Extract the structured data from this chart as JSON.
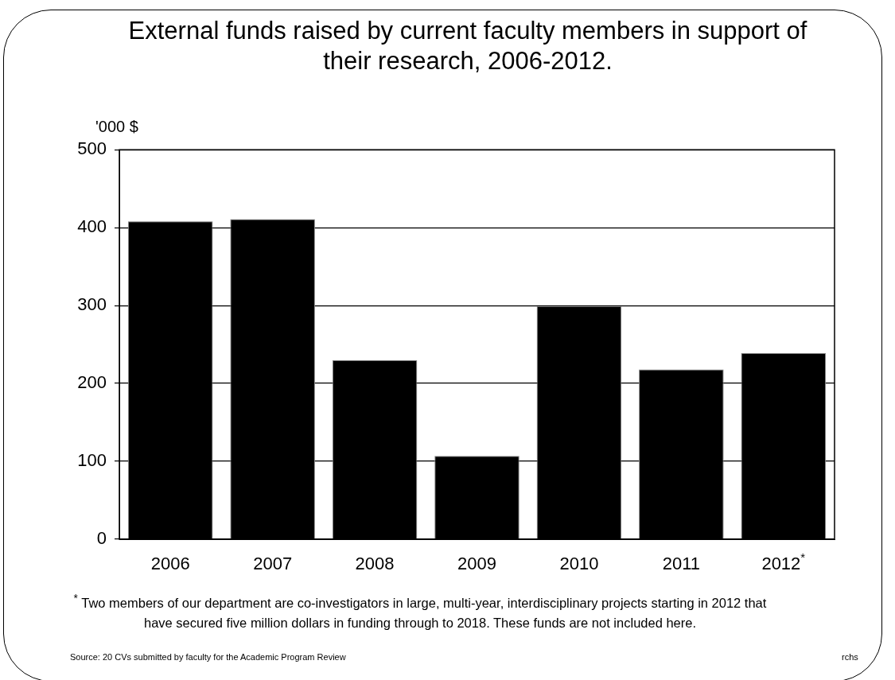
{
  "chart_data": {
    "type": "bar",
    "title": "External funds raised by current faculty members in support of their research, 2006-2012.",
    "ylabel": "'000 $",
    "categories": [
      "2006",
      "2007",
      "2008",
      "2009",
      "2010",
      "2011",
      "2012$^{*}$"
    ],
    "values": [
      408,
      411,
      230,
      107,
      299,
      218,
      239
    ],
    "color": "#000000",
    "ylim": [
      0,
      500
    ],
    "yticks": [
      0,
      100,
      200,
      300,
      400,
      500
    ],
    "grid": "y",
    "legend": false,
    "annotations": [
      "$^{*}$ Two members of our department are co-investigators in large, multi-year, interdisciplinary projects starting in 2012 that have secured five million dollars in funding through to 2018. These funds are not included here.",
      "Source: 20 CVs submitted by faculty for the Academic Program Review",
      "rchs"
    ]
  }
}
